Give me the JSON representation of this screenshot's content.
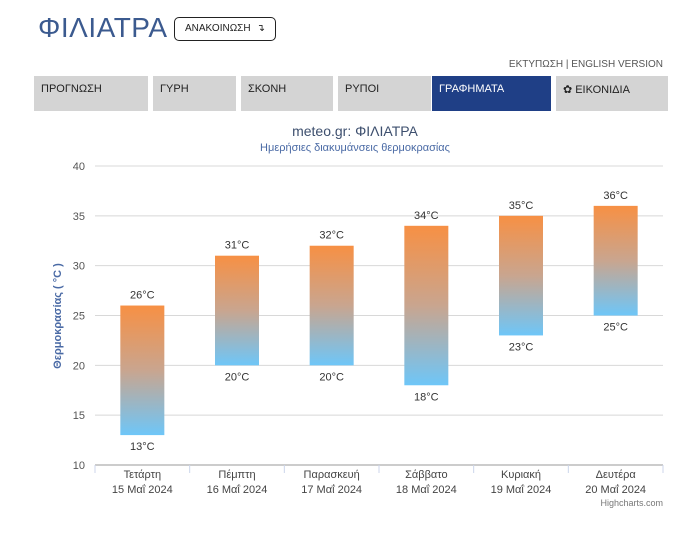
{
  "header": {
    "city": "ΦΙΛΙΑΤΡΑ",
    "announce_label": "ΑΝΑΚΟΙΝΩΣΗ",
    "print_link": "ΕΚΤΥΠΩΣΗ",
    "separator": "|",
    "english_link": "ENGLISH VERSION"
  },
  "tabs": [
    {
      "label": "ΠΡΟΓΝΩΣΗ",
      "active": false
    },
    {
      "label": "ΓΥΡΗ",
      "active": false
    },
    {
      "label": "ΣΚΟΝΗ",
      "active": false
    },
    {
      "label": "ΡΥΠΟΙ",
      "active": false
    },
    {
      "label": "ΓΡΑΦΗΜΑΤΑ",
      "active": true
    },
    {
      "label": "ΕΙΚΟΝΙΔΙΑ",
      "active": false,
      "icon": "gear-icon"
    }
  ],
  "colors": {
    "brand": "#3b5a8f",
    "active_tab": "#1f3f86",
    "tab": "#d4d4d4",
    "bar_top": "#f79044",
    "bar_bottom": "#6ec6f8"
  },
  "chart_data": {
    "type": "bar",
    "title": "meteo.gr: ΦΙΛΙΑΤΡΑ",
    "subtitle": "Ημερήσιες διακυμάνσεις θερμοκρασίας",
    "ylabel": "Θερμοκρασίας ( °C )",
    "xlabel": "",
    "ylim": [
      10,
      40
    ],
    "yticks": [
      10,
      15,
      20,
      25,
      30,
      35,
      40
    ],
    "grid": true,
    "credit": "Highcharts.com",
    "unit_suffix": "°C",
    "categories": [
      {
        "day": "Τετάρτη",
        "date": "15 Μαΐ 2024"
      },
      {
        "day": "Πέμπτη",
        "date": "16 Μαΐ 2024"
      },
      {
        "day": "Παρασκευή",
        "date": "17 Μαΐ 2024"
      },
      {
        "day": "Σάββατο",
        "date": "18 Μαΐ 2024"
      },
      {
        "day": "Κυριακή",
        "date": "19 Μαΐ 2024"
      },
      {
        "day": "Δευτέρα",
        "date": "20 Μαΐ 2024"
      }
    ],
    "min": [
      13,
      20,
      20,
      18,
      23,
      25
    ],
    "max": [
      26,
      31,
      32,
      34,
      35,
      36
    ]
  }
}
